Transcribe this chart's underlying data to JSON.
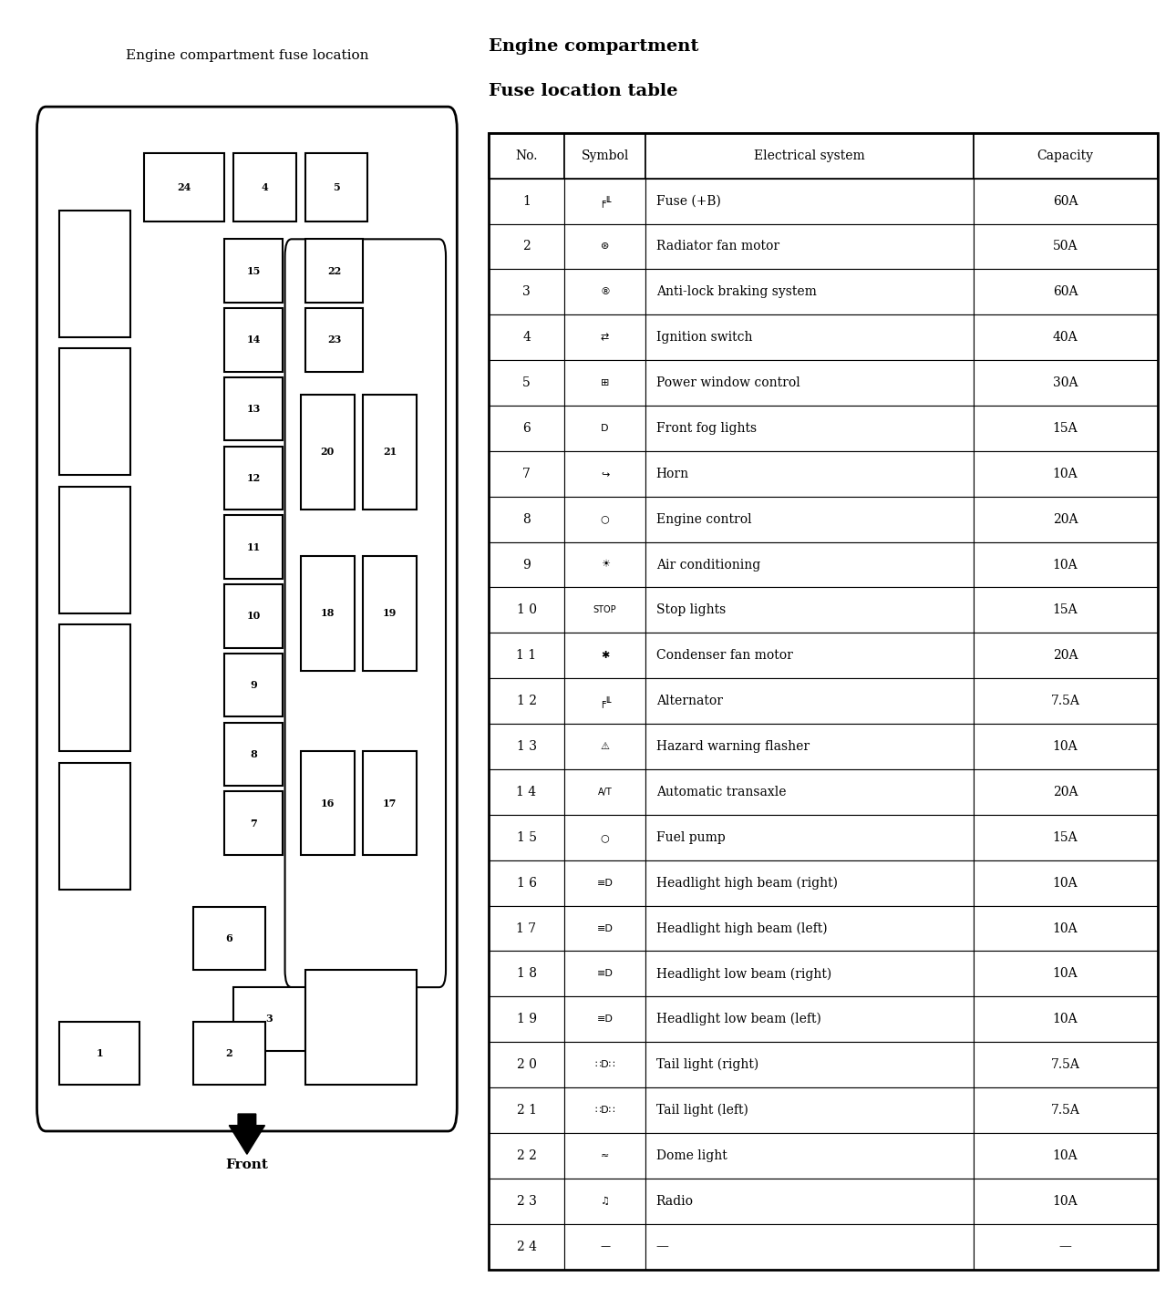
{
  "title_left": "Engine compartment fuse location",
  "title_right_line1": "Engine compartment",
  "title_right_line2": "Fuse location table",
  "table_headers": [
    "No.",
    "Symbol",
    "Electrical system",
    "Capacity"
  ],
  "table_rows": [
    [
      "1",
      "fuse_batt",
      "Fuse (+B)",
      "60A"
    ],
    [
      "2",
      "motor_fan",
      "Radiator fan motor",
      "50A"
    ],
    [
      "3",
      "abs",
      "Anti-lock braking system",
      "60A"
    ],
    [
      "4",
      "ignition",
      "Ignition switch",
      "40A"
    ],
    [
      "5",
      "window",
      "Power window control",
      "30A"
    ],
    [
      "6",
      "fog",
      "Front fog lights",
      "15A"
    ],
    [
      "7",
      "horn",
      "Horn",
      "10A"
    ],
    [
      "8",
      "engine",
      "Engine control",
      "20A"
    ],
    [
      "9",
      "ac",
      "Air conditioning",
      "10A"
    ],
    [
      "1 0",
      "stop",
      "Stop lights",
      "15A"
    ],
    [
      "1 1",
      "condenser",
      "Condenser fan motor",
      "20A"
    ],
    [
      "1 2",
      "alternator",
      "Alternator",
      "7.5A"
    ],
    [
      "1 3",
      "hazard",
      "Hazard warning flasher",
      "10A"
    ],
    [
      "1 4",
      "at",
      "Automatic transaxle",
      "20A"
    ],
    [
      "1 5",
      "fuel",
      "Fuel pump",
      "15A"
    ],
    [
      "1 6",
      "hlight_hi_r",
      "Headlight high beam (right)",
      "10A"
    ],
    [
      "1 7",
      "hlight_hi_l",
      "Headlight high beam (left)",
      "10A"
    ],
    [
      "1 8",
      "hlight_lo_r",
      "Headlight low beam (right)",
      "10A"
    ],
    [
      "1 9",
      "hlight_lo_l",
      "Headlight low beam (left)",
      "10A"
    ],
    [
      "2 0",
      "tail_r",
      "Tail light (right)",
      "7.5A"
    ],
    [
      "2 1",
      "tail_l",
      "Tail light (left)",
      "7.5A"
    ],
    [
      "2 2",
      "dome",
      "Dome light",
      "10A"
    ],
    [
      "2 3",
      "radio",
      "Radio",
      "10A"
    ],
    [
      "2 4",
      "dash",
      "—",
      "—"
    ]
  ],
  "bg_color": "#ffffff",
  "text_color": "#000000",
  "line_color": "#000000"
}
